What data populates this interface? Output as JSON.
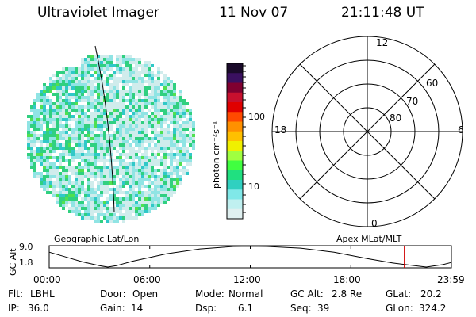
{
  "header": {
    "instrument": "Ultraviolet Imager",
    "date": "11 Nov 07",
    "time": "21:11:48 UT"
  },
  "colorbar": {
    "unit_label": "photon cm⁻²s⁻¹",
    "tick_labels": [
      "100",
      "10"
    ],
    "colors": [
      "#1a0a2a",
      "#3a1060",
      "#800030",
      "#c8102e",
      "#e00000",
      "#ff4a00",
      "#ff9000",
      "#ffc000",
      "#f0f000",
      "#a0ff40",
      "#40ff40",
      "#20e080",
      "#30d0c0",
      "#80e8e8",
      "#c0f0f0",
      "#e0f0f0"
    ]
  },
  "polar_plot": {
    "mlt_labels": {
      "top": "12",
      "left": "18",
      "right": "6",
      "bottom": "0"
    },
    "lat_labels": [
      "60",
      "70",
      "80"
    ]
  },
  "timeline": {
    "left_label": "Geographic Lat/Lon",
    "right_label": "Apex MLat/MLT",
    "axis_label": "GC Alt",
    "y_ticks": [
      "9.0",
      "1.8"
    ],
    "x_ticks": [
      "00:00",
      "06:00",
      "12:00",
      "18:00",
      "23:59"
    ],
    "marker_time_hours": 21.2,
    "marker_color": "#d00000"
  },
  "status": {
    "row1": [
      {
        "key": "Flt:",
        "value": "LBHL"
      },
      {
        "key": "Door:",
        "value": "Open"
      },
      {
        "key": "Mode:",
        "value": "Normal"
      },
      {
        "key": "GC Alt:",
        "value": "2.8 Re"
      },
      {
        "key": "GLat:",
        "value": "20.2"
      }
    ],
    "row2": [
      {
        "key": "IP:",
        "value": "36.0"
      },
      {
        "key": "Gain:",
        "value": "14"
      },
      {
        "key": "Dsp:",
        "value": "6.1"
      },
      {
        "key": "Seq:",
        "value": "39"
      },
      {
        "key": "GLon:",
        "value": "324.2"
      }
    ]
  }
}
